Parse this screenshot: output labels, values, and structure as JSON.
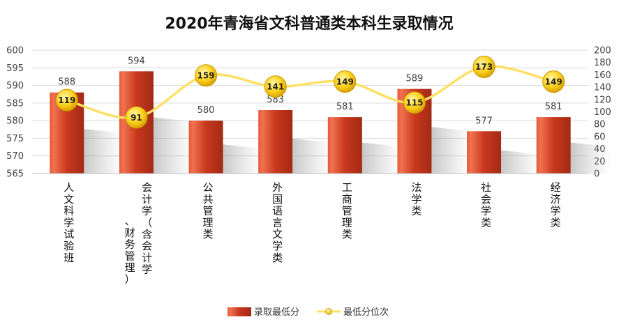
{
  "title": "2020年青海省文科普通类本科生录取情况",
  "chart_data": {
    "type": "bar",
    "categories": [
      "人文科学试验班",
      "会计学（含会计学、财务管理）",
      "公共管理类",
      "外国语言文学类",
      "工商管理类",
      "法学类",
      "社会学类",
      "经济学类"
    ],
    "series": [
      {
        "name": "录取最低分",
        "type": "bar",
        "axis": "left",
        "color": "#C0341D",
        "values": [
          588,
          594,
          580,
          583,
          581,
          589,
          577,
          581
        ]
      },
      {
        "name": "最低分位次",
        "type": "line",
        "axis": "right",
        "color": "#FFE066",
        "values": [
          119,
          91,
          159,
          141,
          149,
          115,
          173,
          149
        ]
      }
    ],
    "y_left": {
      "min": 565,
      "max": 600,
      "ticks": [
        565,
        570,
        575,
        580,
        585,
        590,
        595,
        600
      ]
    },
    "y_right": {
      "min": 0,
      "max": 200,
      "ticks": [
        0,
        20,
        40,
        60,
        80,
        100,
        120,
        140,
        160,
        180,
        200
      ]
    },
    "grid": true,
    "legend_position": "bottom"
  }
}
